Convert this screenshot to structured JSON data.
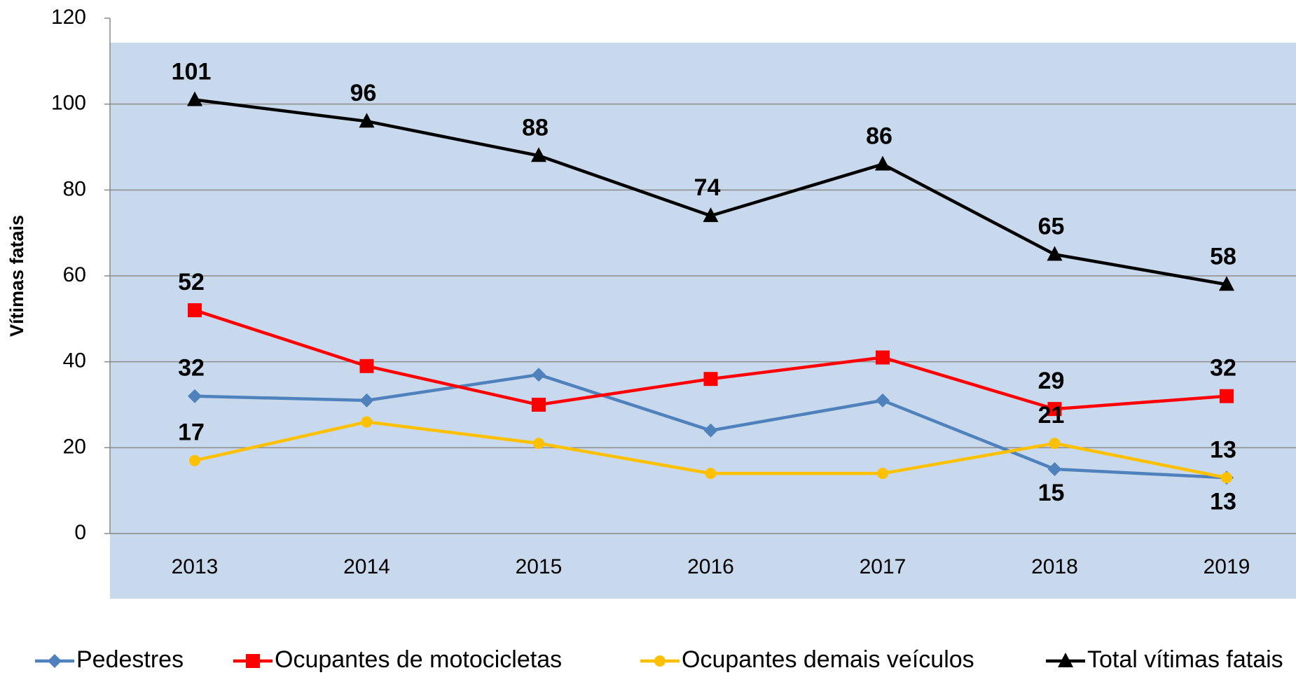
{
  "chart_data": {
    "type": "line",
    "ylabel": "Vítimas fatais",
    "categories": [
      "2013",
      "2014",
      "2015",
      "2016",
      "2017",
      "2018",
      "2019"
    ],
    "ylim": [
      0,
      120
    ],
    "yticks": [
      0,
      20,
      40,
      60,
      80,
      100,
      120
    ],
    "grid": true,
    "legend": "bottom",
    "series": [
      {
        "name": "Pedestres",
        "color": "#4f81bd",
        "marker": "diamond",
        "values": [
          32,
          31,
          37,
          24,
          31,
          15,
          13
        ],
        "value_labels": [
          "32",
          null,
          null,
          null,
          null,
          "15",
          "13"
        ]
      },
      {
        "name": "Ocupantes de motocicletas",
        "color": "#ff0000",
        "marker": "square",
        "values": [
          52,
          39,
          30,
          36,
          41,
          29,
          32
        ],
        "value_labels": [
          "52",
          null,
          null,
          null,
          null,
          "29",
          "32"
        ]
      },
      {
        "name": "Ocupantes demais veículos",
        "color": "#ffc000",
        "marker": "circle",
        "values": [
          17,
          26,
          21,
          14,
          14,
          21,
          13
        ],
        "value_labels": [
          "17",
          null,
          null,
          null,
          null,
          "21",
          "13"
        ]
      },
      {
        "name": "Total vítimas fatais",
        "color": "#000000",
        "marker": "triangle",
        "values": [
          101,
          96,
          88,
          74,
          86,
          65,
          58
        ],
        "value_labels": [
          "101",
          "96",
          "88",
          "74",
          "86",
          "65",
          "58"
        ]
      }
    ]
  }
}
